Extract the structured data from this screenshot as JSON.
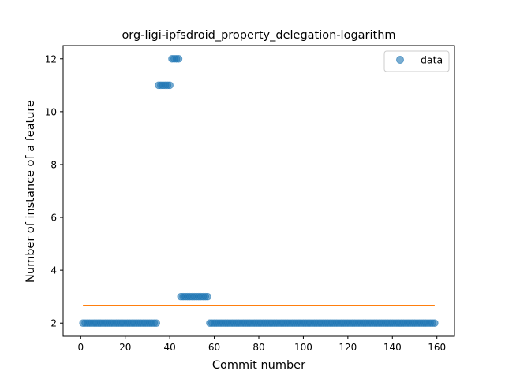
{
  "chart_data": {
    "type": "scatter",
    "title": "org-ligi-ipfsdroid_property_delegation-logarithm",
    "xlabel": "Commit number",
    "ylabel": "Number of instance of a feature",
    "xlim": [
      -7.9,
      167.9
    ],
    "ylim": [
      1.5,
      12.5
    ],
    "xticks": [
      0,
      20,
      40,
      60,
      80,
      100,
      120,
      140,
      160
    ],
    "yticks": [
      2,
      4,
      6,
      8,
      10,
      12
    ],
    "grid": false,
    "legend": {
      "entries": [
        "data"
      ],
      "placement": "top-right"
    },
    "colors": {
      "data": "#1f77b4",
      "fit": "#ff7f0e"
    },
    "series": [
      {
        "name": "data",
        "segments": [
          {
            "x_from": 1,
            "x_to": 34,
            "y": 2
          },
          {
            "x_from": 35,
            "x_to": 40,
            "y": 11
          },
          {
            "x_from": 41,
            "x_to": 44,
            "y": 12
          },
          {
            "x_from": 45,
            "x_to": 57,
            "y": 3
          },
          {
            "x_from": 58,
            "x_to": 159,
            "y": 2
          }
        ]
      },
      {
        "kind": "line",
        "x": [
          1,
          159
        ],
        "y": [
          2.67,
          2.67
        ]
      }
    ]
  }
}
